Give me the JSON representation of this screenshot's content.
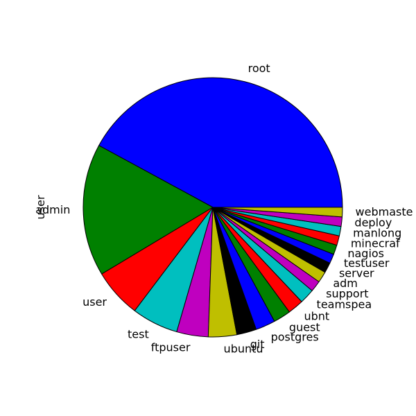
{
  "chart_data": {
    "type": "pie",
    "ylabel": "user",
    "start_angle_deg": 0,
    "direction": "counterclockwise",
    "slices": [
      {
        "label": "root",
        "value": 42.8,
        "color": "#0000ff"
      },
      {
        "label": "admin",
        "value": 16.8,
        "color": "#008000"
      },
      {
        "label": "user",
        "value": 6.2,
        "color": "#ff0000"
      },
      {
        "label": "test",
        "value": 5.9,
        "color": "#00bfbf"
      },
      {
        "label": "ftpuser",
        "value": 4.0,
        "color": "#bf00bf"
      },
      {
        "label": "ubuntu",
        "value": 3.6,
        "color": "#bfbf00"
      },
      {
        "label": "git",
        "value": 2.5,
        "color": "#000000"
      },
      {
        "label": "postgres",
        "value": 2.5,
        "color": "#0000ff"
      },
      {
        "label": "guest",
        "value": 2.2,
        "color": "#008000"
      },
      {
        "label": "ubnt",
        "value": 2.0,
        "color": "#ff0000"
      },
      {
        "label": "teamspea",
        "value": 1.9,
        "color": "#00bfbf"
      },
      {
        "label": "support",
        "value": 1.4,
        "color": "#bf00bf"
      },
      {
        "label": "adm",
        "value": 1.4,
        "color": "#bfbf00"
      },
      {
        "label": "server",
        "value": 1.3,
        "color": "#000000"
      },
      {
        "label": "testuser",
        "value": 1.2,
        "color": "#0000ff"
      },
      {
        "label": "nagios",
        "value": 1.2,
        "color": "#008000"
      },
      {
        "label": "minecraf",
        "value": 1.2,
        "color": "#ff0000"
      },
      {
        "label": "manlong",
        "value": 1.2,
        "color": "#00bfbf"
      },
      {
        "label": "deploy",
        "value": 1.2,
        "color": "#bf00bf"
      },
      {
        "label": "webmaste",
        "value": 1.2,
        "color": "#bfbf00"
      }
    ]
  }
}
